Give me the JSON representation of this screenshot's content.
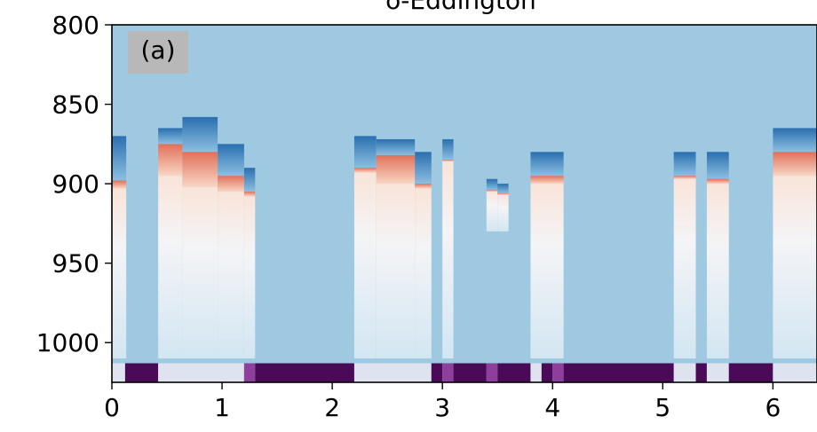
{
  "chart_data": {
    "type": "heatmap",
    "title": "δ-Eddington",
    "panel_label": "(a)",
    "xlabel": "",
    "ylabel": "",
    "xlim": [
      0,
      6.4
    ],
    "ylim_inverted": [
      800,
      1025
    ],
    "x_ticks": [
      "0",
      "1",
      "2",
      "3",
      "4",
      "5",
      "6"
    ],
    "y_ticks": [
      "800",
      "850",
      "900",
      "950",
      "1000"
    ],
    "colors": {
      "background": "#9ec9e1",
      "frame": "#000000",
      "cold_dark": "#2a6fb0",
      "cold_light": "#cfe4f1",
      "neutral": "#f4f4f6",
      "warm_light": "#f8d6c4",
      "warm_dark": "#e0705a",
      "bottom_strip_dark": "#4a0a57",
      "bottom_strip_mid": "#8d3f9b",
      "bottom_strip_light": "#dfe3ef",
      "label_box": "#b8b8b8"
    },
    "columns": [
      {
        "x0": 0.0,
        "x1": 0.13,
        "top": 870,
        "band": "cold",
        "warm_top": 898,
        "warm_bottom": 903,
        "fade_to": 1010
      },
      {
        "x0": 0.42,
        "x1": 0.64,
        "top": 865,
        "band": "cold",
        "warm_top": 875,
        "warm_bottom": 895,
        "fade_to": 1010
      },
      {
        "x0": 0.64,
        "x1": 0.96,
        "top": 858,
        "band": "cold",
        "warm_top": 880,
        "warm_bottom": 902,
        "fade_to": 1010
      },
      {
        "x0": 0.96,
        "x1": 1.2,
        "top": 875,
        "band": "cold",
        "warm_top": 895,
        "warm_bottom": 905,
        "fade_to": 1010
      },
      {
        "x0": 1.2,
        "x1": 1.3,
        "top": 890,
        "band": "cold",
        "warm_top": 905,
        "warm_bottom": 908,
        "fade_to": 1010
      },
      {
        "x0": 2.2,
        "x1": 2.4,
        "top": 870,
        "band": "cold",
        "warm_top": 890,
        "warm_bottom": 893,
        "fade_to": 1010
      },
      {
        "x0": 2.4,
        "x1": 2.75,
        "top": 872,
        "band": "cold",
        "warm_top": 882,
        "warm_bottom": 900,
        "fade_to": 1010
      },
      {
        "x0": 2.75,
        "x1": 2.9,
        "top": 880,
        "band": "cold",
        "warm_top": 900,
        "warm_bottom": 903,
        "fade_to": 1010
      },
      {
        "x0": 3.0,
        "x1": 3.1,
        "top": 872,
        "band": "cold",
        "warm_top": 885,
        "warm_bottom": 886,
        "fade_to": 1010
      },
      {
        "x0": 3.4,
        "x1": 3.5,
        "top": 897,
        "band": "cold",
        "warm_top": 904,
        "warm_bottom": 905,
        "fade_to": 930
      },
      {
        "x0": 3.5,
        "x1": 3.6,
        "top": 900,
        "band": "cold",
        "warm_top": 906,
        "warm_bottom": 907,
        "fade_to": 930
      },
      {
        "x0": 3.8,
        "x1": 4.1,
        "top": 880,
        "band": "cold",
        "warm_top": 895,
        "warm_bottom": 900,
        "fade_to": 1010
      },
      {
        "x0": 5.1,
        "x1": 5.3,
        "top": 880,
        "band": "cold",
        "warm_top": 895,
        "warm_bottom": 897,
        "fade_to": 1010
      },
      {
        "x0": 5.4,
        "x1": 5.6,
        "top": 880,
        "band": "cold",
        "warm_top": 897,
        "warm_bottom": 900,
        "fade_to": 1010
      },
      {
        "x0": 6.0,
        "x1": 6.4,
        "top": 865,
        "band": "cold",
        "warm_top": 880,
        "warm_bottom": 895,
        "fade_to": 1010
      }
    ],
    "bottom_strip": {
      "y_top": 1013,
      "y_bottom": 1025,
      "segments": [
        {
          "x0": 0.0,
          "x1": 0.12,
          "tone": "light"
        },
        {
          "x0": 0.12,
          "x1": 0.42,
          "tone": "dark"
        },
        {
          "x0": 0.42,
          "x1": 1.2,
          "tone": "light"
        },
        {
          "x0": 1.2,
          "x1": 1.3,
          "tone": "mid"
        },
        {
          "x0": 1.3,
          "x1": 2.2,
          "tone": "dark"
        },
        {
          "x0": 2.2,
          "x1": 2.9,
          "tone": "light"
        },
        {
          "x0": 2.9,
          "x1": 3.0,
          "tone": "dark"
        },
        {
          "x0": 3.0,
          "x1": 3.1,
          "tone": "mid"
        },
        {
          "x0": 3.1,
          "x1": 3.4,
          "tone": "dark"
        },
        {
          "x0": 3.4,
          "x1": 3.5,
          "tone": "mid"
        },
        {
          "x0": 3.5,
          "x1": 3.8,
          "tone": "dark"
        },
        {
          "x0": 3.8,
          "x1": 3.9,
          "tone": "light"
        },
        {
          "x0": 3.9,
          "x1": 4.0,
          "tone": "dark"
        },
        {
          "x0": 4.0,
          "x1": 4.1,
          "tone": "mid"
        },
        {
          "x0": 4.1,
          "x1": 5.1,
          "tone": "dark"
        },
        {
          "x0": 5.1,
          "x1": 5.3,
          "tone": "light"
        },
        {
          "x0": 5.3,
          "x1": 5.4,
          "tone": "dark"
        },
        {
          "x0": 5.4,
          "x1": 5.6,
          "tone": "light"
        },
        {
          "x0": 5.6,
          "x1": 6.0,
          "tone": "dark"
        },
        {
          "x0": 6.0,
          "x1": 6.4,
          "tone": "light"
        }
      ]
    }
  }
}
